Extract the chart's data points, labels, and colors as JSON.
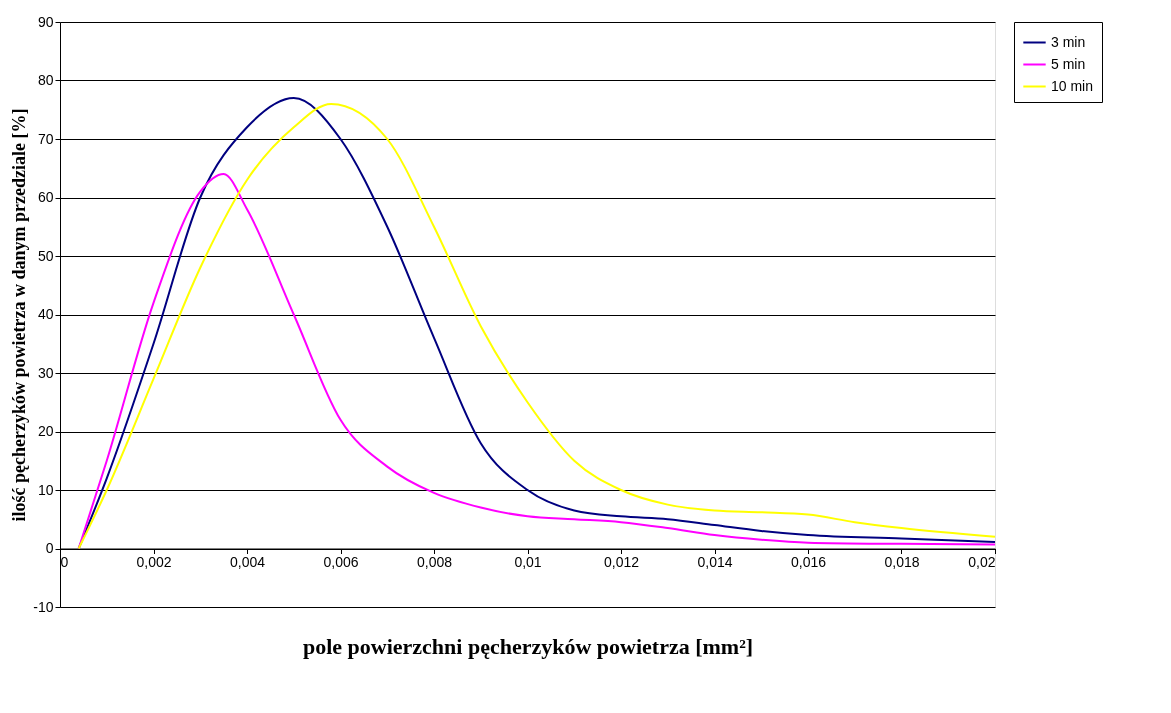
{
  "chart_data": {
    "type": "line",
    "xlabel": "pole powierzchni pęcherzyków powietrza [mm²]",
    "ylabel": "ilość pęcherzyków powietrza w danym przedziale [%]",
    "xlim": [
      0,
      0.02
    ],
    "ylim": [
      -10,
      90
    ],
    "xticks": [
      {
        "value": 0,
        "label": "0"
      },
      {
        "value": 0.002,
        "label": "0,002"
      },
      {
        "value": 0.004,
        "label": "0,004"
      },
      {
        "value": 0.006,
        "label": "0,006"
      },
      {
        "value": 0.008,
        "label": "0,008"
      },
      {
        "value": 0.01,
        "label": "0,01"
      },
      {
        "value": 0.012,
        "label": "0,012"
      },
      {
        "value": 0.014,
        "label": "0,014"
      },
      {
        "value": 0.016,
        "label": "0,016"
      },
      {
        "value": 0.018,
        "label": "0,018"
      },
      {
        "value": 0.02,
        "label": "0,02"
      }
    ],
    "yticks": [
      -10,
      0,
      10,
      20,
      30,
      40,
      50,
      60,
      70,
      80,
      90
    ],
    "grid": "y",
    "legend": "right",
    "marker": "none",
    "line_style": "solid",
    "series": [
      {
        "name": "3 min",
        "color": "#000080",
        "x": [
          0.0004,
          0.001,
          0.002,
          0.003,
          0.004,
          0.005,
          0.006,
          0.007,
          0.008,
          0.009,
          0.01,
          0.011,
          0.012,
          0.013,
          0.014,
          0.015,
          0.016,
          0.018,
          0.02
        ],
        "values": [
          0,
          12,
          35,
          60,
          72,
          77,
          70,
          55,
          36,
          18,
          10,
          6.5,
          5.5,
          5,
          4,
          3,
          2.3,
          1.7,
          1.1
        ]
      },
      {
        "name": "5 min",
        "color": "#ff00ff",
        "x": [
          0.0004,
          0.001,
          0.002,
          0.003,
          0.0035,
          0.004,
          0.005,
          0.006,
          0.007,
          0.008,
          0.009,
          0.01,
          0.011,
          0.012,
          0.013,
          0.014,
          0.015,
          0.016,
          0.018,
          0.02
        ],
        "values": [
          0,
          15,
          42,
          61,
          64,
          58,
          40,
          22,
          14,
          9.5,
          7,
          5.5,
          5,
          4.5,
          3.5,
          2.3,
          1.5,
          1,
          0.8,
          0.7
        ]
      },
      {
        "name": "10 min",
        "color": "#ffff00",
        "x": [
          0.0004,
          0.001,
          0.002,
          0.003,
          0.004,
          0.005,
          0.0058,
          0.007,
          0.008,
          0.009,
          0.01,
          0.011,
          0.012,
          0.013,
          0.014,
          0.015,
          0.016,
          0.017,
          0.018,
          0.02
        ],
        "values": [
          0,
          10,
          29,
          48,
          63,
          72,
          76,
          70,
          55,
          38,
          25,
          15,
          10,
          7.5,
          6.5,
          6.2,
          5.8,
          4.5,
          3.5,
          2
        ]
      }
    ]
  }
}
